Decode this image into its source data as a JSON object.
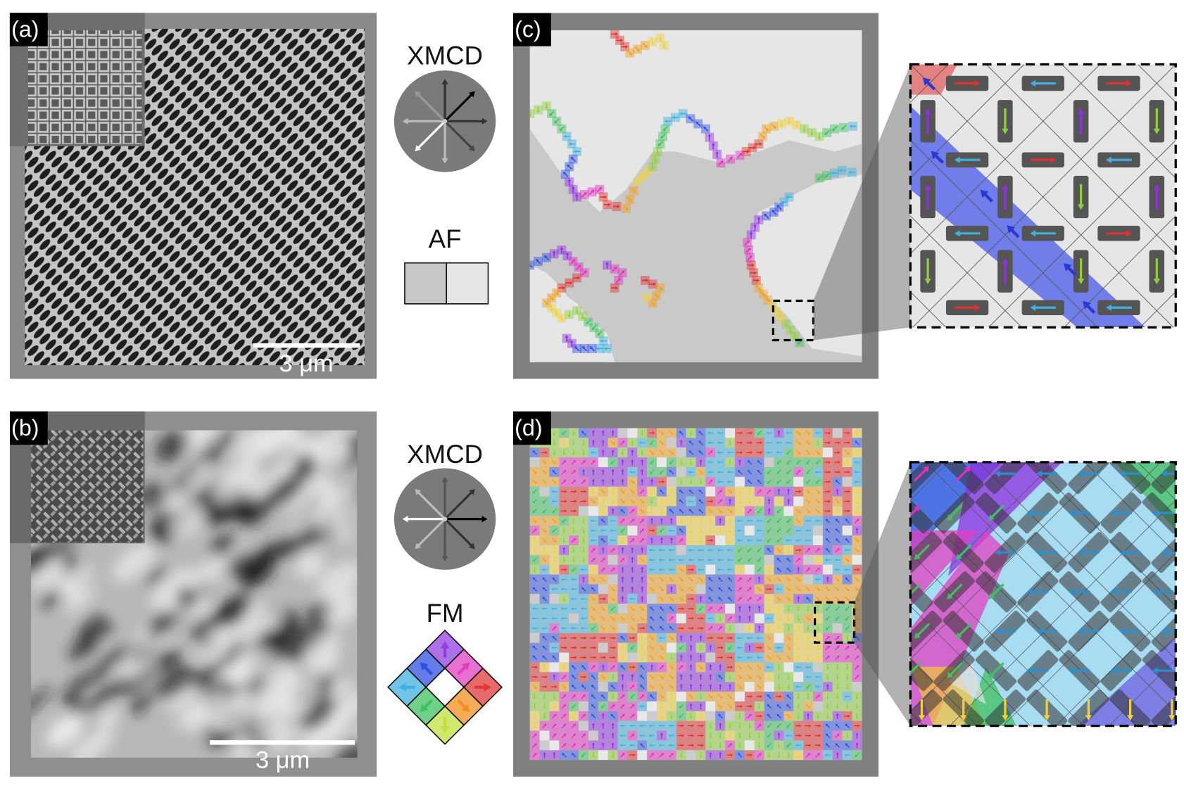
{
  "panels": [
    {
      "label": "(a)",
      "scale_bar": "3 μm"
    },
    {
      "label": "(b)",
      "scale_bar": "3 μm"
    },
    {
      "label": "(c)"
    },
    {
      "label": "(d)"
    }
  ],
  "legends": [
    {
      "title": "XMCD"
    },
    {
      "title": "AF"
    },
    {
      "title": "XMCD"
    },
    {
      "title": "FM"
    }
  ]
}
